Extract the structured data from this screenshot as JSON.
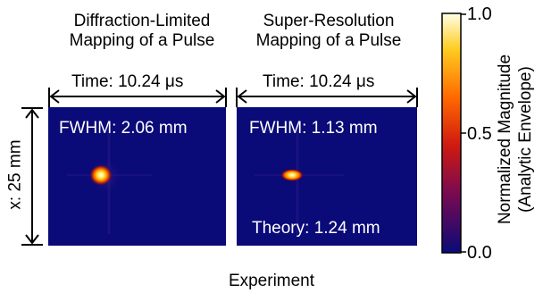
{
  "left_panel": {
    "title_line1": "Diffraction-Limited",
    "title_line2": "Mapping of a Pulse",
    "time_label": "Time: 10.24 μs",
    "fwhm_label": "FWHM: 2.06 mm"
  },
  "right_panel": {
    "title_line1": "Super-Resolution",
    "title_line2": "Mapping of a Pulse",
    "time_label": "Time: 10.24 μs",
    "fwhm_label": "FWHM: 1.13 mm",
    "theory_label": "Theory: 1.24 mm"
  },
  "x_label": "x: 25 mm",
  "colorbar": {
    "label_line1": "Normalized Magnitude",
    "label_line2": "(Analytic Envelope)",
    "ticks": [
      "1.0",
      "0.5",
      "0.0"
    ]
  },
  "footer": "Experiment",
  "colors": {
    "map_background": "#0a0a78",
    "hot": "#ffff80"
  }
}
